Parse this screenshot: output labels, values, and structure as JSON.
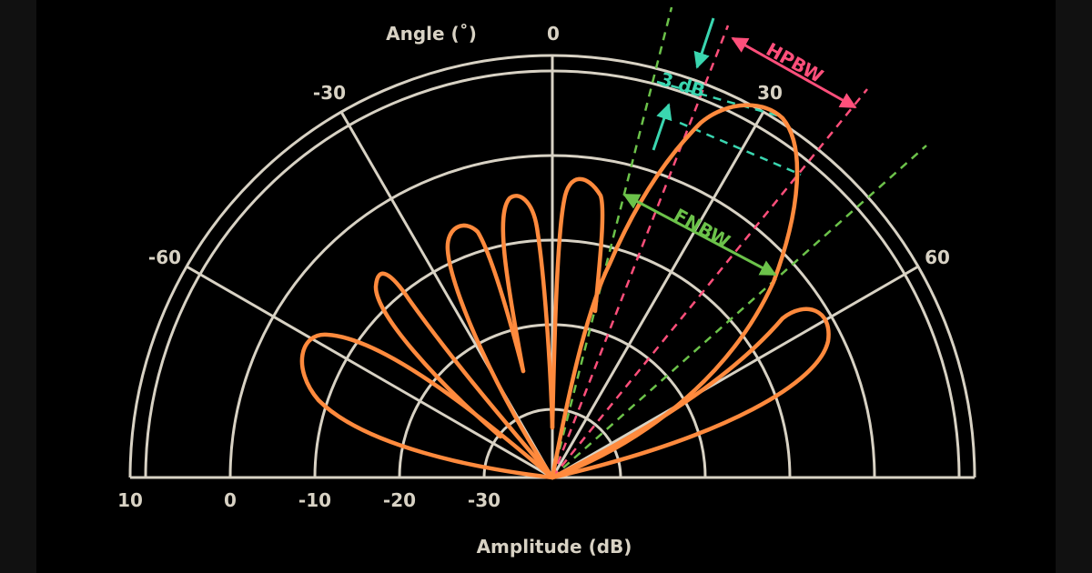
{
  "diagram": {
    "title": "Angle (˚)",
    "x_axis_title": "Amplitude (dB)",
    "angle_labels": [
      "-60",
      "-30",
      "0",
      "30",
      "60"
    ],
    "amplitude_labels": [
      "10",
      "0",
      "-10",
      "-20",
      "-30"
    ],
    "annotations": {
      "hpbw": "HPBW",
      "fnbw": "FNBW",
      "three_db": "3 dB"
    },
    "colors": {
      "background": "#000000",
      "grid": "#d8d2c4",
      "pattern": "#ff8a3d",
      "hpbw": "#ff4f7b",
      "fnbw": "#6cc24a",
      "three_db": "#3ad6b0"
    }
  }
}
